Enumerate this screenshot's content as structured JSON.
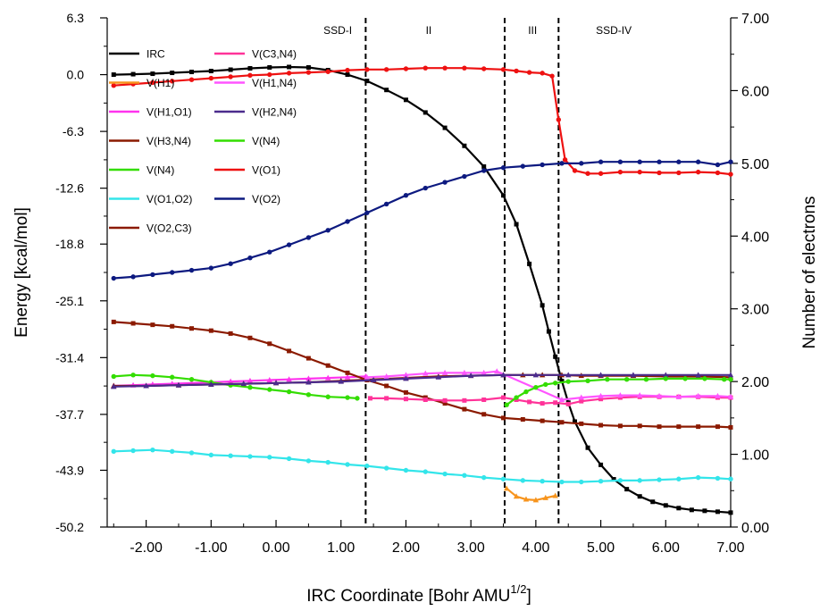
{
  "chart_data": {
    "type": "line",
    "title": "",
    "xlabel": "IRC Coordinate [Bohr AMU",
    "xlabel_sup": "1/2",
    "xlabel_end": "]",
    "ylabel_left": "Energy [kcal/mol]",
    "ylabel_right": "Number of electrons",
    "xlim": [
      -2.6,
      7.0
    ],
    "ylim_left": [
      -50.2,
      6.3
    ],
    "ylim_right": [
      0.0,
      7.0
    ],
    "xticks": [
      -2.0,
      -1.0,
      0.0,
      1.0,
      2.0,
      3.0,
      4.0,
      5.0,
      6.0,
      7.0
    ],
    "xtick_labels": [
      "-2.00",
      "-1.00",
      "0.00",
      "1.00",
      "2.00",
      "3.00",
      "4.00",
      "5.00",
      "6.00",
      "7.00"
    ],
    "yticks_left": [
      6.3,
      0.0,
      -6.3,
      -12.6,
      -18.8,
      -25.1,
      -31.4,
      -37.7,
      -43.9,
      -50.2
    ],
    "ytick_labels_left": [
      "6.3",
      "0.0",
      "-6.3",
      "-12.6",
      "-18.8",
      "-25.1",
      "-31.4",
      "-37.7",
      "-43.9",
      "-50.2"
    ],
    "yticks_right": [
      0.0,
      1.0,
      2.0,
      3.0,
      4.0,
      5.0,
      6.0,
      7.0
    ],
    "ytick_labels_right": [
      "0.00",
      "1.00",
      "2.00",
      "3.00",
      "4.00",
      "5.00",
      "6.00",
      "7.00"
    ],
    "grid": false,
    "legend_position": "top-left",
    "boundaries": [
      1.38,
      3.52,
      4.35
    ],
    "regions": [
      {
        "label": "SSD-I",
        "x": 0.95
      },
      {
        "label": "II",
        "x": 2.35
      },
      {
        "label": "III",
        "x": 3.95
      },
      {
        "label": "SSD-IV",
        "x": 5.2
      }
    ],
    "series": [
      {
        "name": "IRC",
        "axis": "left",
        "color": "#000000",
        "marker": "square",
        "x": [
          -2.5,
          -2.2,
          -1.9,
          -1.6,
          -1.3,
          -1.0,
          -0.7,
          -0.4,
          -0.1,
          0.2,
          0.5,
          0.8,
          1.1,
          1.4,
          1.7,
          2.0,
          2.3,
          2.6,
          2.9,
          3.2,
          3.5,
          3.7,
          3.9,
          4.1,
          4.2,
          4.3,
          4.4,
          4.5,
          4.6,
          4.8,
          5.0,
          5.2,
          5.4,
          5.6,
          5.8,
          6.0,
          6.2,
          6.4,
          6.6,
          6.8,
          7.0
        ],
        "y": [
          0.0,
          0.05,
          0.1,
          0.2,
          0.3,
          0.4,
          0.55,
          0.7,
          0.8,
          0.85,
          0.8,
          0.5,
          0.0,
          -0.7,
          -1.7,
          -2.8,
          -4.2,
          -5.9,
          -7.9,
          -10.2,
          -13.4,
          -16.6,
          -21.0,
          -25.6,
          -28.5,
          -31.3,
          -34.0,
          -36.4,
          -38.5,
          -41.4,
          -43.3,
          -44.9,
          -46.0,
          -46.8,
          -47.4,
          -47.8,
          -48.1,
          -48.3,
          -48.4,
          -48.5,
          -48.6
        ]
      },
      {
        "name": "V(H1)",
        "axis": "right",
        "color": "#f7941d",
        "marker": "triangle",
        "x": [
          3.55,
          3.7,
          3.85,
          4.0,
          4.15,
          4.3
        ],
        "y": [
          0.53,
          0.42,
          0.38,
          0.37,
          0.4,
          0.43
        ]
      },
      {
        "name": "V(H1,O1)",
        "axis": "right",
        "color": "#ff33ee",
        "marker": "triangle",
        "x": [
          -2.5,
          -2.2,
          -1.9,
          -1.6,
          -1.3,
          -1.0,
          -0.7,
          -0.4,
          -0.1,
          0.2,
          0.5,
          0.8,
          1.1,
          1.38
        ],
        "y": [
          1.94,
          1.95,
          1.96,
          1.97,
          1.98,
          1.99,
          2.0,
          2.01,
          2.02,
          2.03,
          2.04,
          2.05,
          2.06,
          2.07
        ]
      },
      {
        "name": "V(H3,N4)",
        "axis": "right",
        "color": "#8b1a00",
        "marker": "square",
        "x": [
          -2.5,
          -2.2,
          -1.9,
          -1.6,
          -1.3,
          -1.0,
          -0.7,
          -0.4,
          -0.1,
          0.2,
          0.5,
          0.8,
          1.1,
          1.4,
          1.7,
          2.0,
          2.3,
          2.6,
          2.9,
          3.2,
          3.5,
          3.8,
          4.1,
          4.4,
          4.7,
          5.0,
          5.3,
          5.6,
          5.9,
          6.2,
          6.5,
          6.8,
          7.0
        ],
        "y": [
          2.82,
          2.8,
          2.78,
          2.76,
          2.73,
          2.7,
          2.66,
          2.6,
          2.52,
          2.42,
          2.32,
          2.22,
          2.12,
          2.02,
          1.94,
          1.85,
          1.78,
          1.7,
          1.62,
          1.55,
          1.5,
          1.48,
          1.46,
          1.44,
          1.42,
          1.4,
          1.39,
          1.39,
          1.38,
          1.38,
          1.38,
          1.38,
          1.37
        ]
      },
      {
        "name": "V(N4)",
        "axis": "right",
        "color": "#33dd00",
        "marker": "circle",
        "x": [
          -2.5,
          -2.2,
          -1.9,
          -1.6,
          -1.3,
          -1.0,
          -0.7,
          -0.4,
          -0.1,
          0.2,
          0.5,
          0.8,
          1.1,
          1.25
        ],
        "y": [
          2.07,
          2.09,
          2.08,
          2.06,
          2.03,
          1.99,
          1.95,
          1.92,
          1.89,
          1.86,
          1.82,
          1.79,
          1.78,
          1.77
        ]
      },
      {
        "name": "V(O1,O2)",
        "axis": "right",
        "color": "#33e5ea",
        "marker": "circle",
        "x": [
          -2.5,
          -2.2,
          -1.9,
          -1.6,
          -1.3,
          -1.0,
          -0.7,
          -0.4,
          -0.1,
          0.2,
          0.5,
          0.8,
          1.1,
          1.4,
          1.7,
          2.0,
          2.3,
          2.6,
          2.9,
          3.2,
          3.5,
          3.8,
          4.1,
          4.4,
          4.7,
          5.0,
          5.3,
          5.6,
          5.9,
          6.2,
          6.5,
          6.8,
          7.0
        ],
        "y": [
          1.04,
          1.05,
          1.06,
          1.04,
          1.02,
          0.99,
          0.98,
          0.97,
          0.96,
          0.94,
          0.91,
          0.89,
          0.86,
          0.84,
          0.81,
          0.78,
          0.76,
          0.73,
          0.71,
          0.68,
          0.66,
          0.64,
          0.63,
          0.62,
          0.62,
          0.63,
          0.64,
          0.64,
          0.65,
          0.66,
          0.68,
          0.67,
          0.66
        ]
      },
      {
        "name": "V(O2,C3)",
        "axis": "right",
        "color": "#8b1a00",
        "marker": "triangle",
        "x": [
          -2.5,
          -2.0,
          -1.5,
          -1.0,
          -0.5,
          0.0,
          0.5,
          1.0,
          1.5,
          2.0,
          2.5,
          3.0,
          3.5,
          3.8,
          4.1,
          4.4,
          4.7,
          5.0,
          5.5,
          6.0,
          6.5,
          7.0
        ],
        "y": [
          1.94,
          1.94,
          1.95,
          1.96,
          1.97,
          1.98,
          1.99,
          2.01,
          2.03,
          2.05,
          2.07,
          2.08,
          2.09,
          2.09,
          2.09,
          2.09,
          2.08,
          2.08,
          2.08,
          2.07,
          2.07,
          2.06
        ]
      },
      {
        "name": "V(C3,N4)",
        "axis": "right",
        "color": "#ff3399",
        "marker": "square",
        "x": [
          1.45,
          1.7,
          2.0,
          2.3,
          2.6,
          2.9,
          3.2,
          3.5,
          3.7,
          3.9,
          4.1,
          4.3,
          4.5,
          4.7,
          5.0,
          5.3,
          5.6,
          5.9,
          6.2,
          6.5,
          6.8,
          7.0
        ],
        "y": [
          1.77,
          1.77,
          1.76,
          1.75,
          1.74,
          1.74,
          1.75,
          1.78,
          1.75,
          1.72,
          1.7,
          1.71,
          1.69,
          1.73,
          1.76,
          1.78,
          1.79,
          1.79,
          1.79,
          1.79,
          1.78,
          1.78
        ]
      },
      {
        "name": "V(H1,N4)",
        "axis": "right",
        "color": "#ff55ff",
        "marker": "triangle",
        "x": [
          1.4,
          1.7,
          2.0,
          2.3,
          2.6,
          2.9,
          3.2,
          3.4,
          4.4,
          4.7,
          5.0,
          5.3,
          5.6,
          5.9,
          6.2,
          6.5,
          6.8,
          7.0
        ],
        "y": [
          2.06,
          2.07,
          2.09,
          2.11,
          2.12,
          2.12,
          2.12,
          2.14,
          1.75,
          1.78,
          1.8,
          1.81,
          1.81,
          1.8,
          1.79,
          1.8,
          1.8,
          1.79
        ]
      },
      {
        "name": "V(H2,N4)",
        "axis": "right",
        "color": "#4b2b8c",
        "marker": "triangle",
        "x": [
          -2.5,
          -2.0,
          -1.5,
          -1.0,
          -0.5,
          0.0,
          0.5,
          1.0,
          1.5,
          2.0,
          2.5,
          3.0,
          3.5,
          4.0,
          4.5,
          5.0,
          5.5,
          6.0,
          6.5,
          7.0
        ],
        "y": [
          1.93,
          1.94,
          1.95,
          1.96,
          1.97,
          1.98,
          1.99,
          2.0,
          2.02,
          2.04,
          2.06,
          2.08,
          2.09,
          2.09,
          2.09,
          2.09,
          2.09,
          2.09,
          2.09,
          2.09
        ]
      },
      {
        "name": "V(N4)",
        "axis": "right",
        "color": "#33dd00",
        "marker": "circle",
        "x": [
          3.55,
          3.7,
          3.85,
          4.0,
          4.15,
          4.3,
          4.5,
          4.8,
          5.1,
          5.4,
          5.7,
          6.0,
          6.3,
          6.6,
          6.9,
          7.0
        ],
        "y": [
          1.68,
          1.78,
          1.86,
          1.92,
          1.96,
          1.98,
          2.0,
          2.01,
          2.03,
          2.03,
          2.03,
          2.04,
          2.04,
          2.04,
          2.03,
          2.03
        ]
      },
      {
        "name": "V(O1)",
        "axis": "right",
        "color": "#ee1111",
        "marker": "circle",
        "x": [
          -2.5,
          -2.2,
          -1.9,
          -1.6,
          -1.3,
          -1.0,
          -0.7,
          -0.4,
          -0.1,
          0.2,
          0.5,
          0.8,
          1.1,
          1.4,
          1.7,
          2.0,
          2.3,
          2.6,
          2.9,
          3.2,
          3.5,
          3.7,
          3.9,
          4.1,
          4.25,
          4.35,
          4.45,
          4.6,
          4.8,
          5.0,
          5.3,
          5.6,
          5.9,
          6.2,
          6.5,
          6.8,
          7.0
        ],
        "y": [
          6.07,
          6.09,
          6.11,
          6.13,
          6.15,
          6.17,
          6.19,
          6.21,
          6.22,
          6.24,
          6.25,
          6.26,
          6.28,
          6.29,
          6.29,
          6.3,
          6.31,
          6.31,
          6.31,
          6.3,
          6.29,
          6.27,
          6.25,
          6.24,
          6.2,
          5.6,
          5.05,
          4.9,
          4.86,
          4.86,
          4.88,
          4.88,
          4.87,
          4.87,
          4.88,
          4.87,
          4.85
        ]
      },
      {
        "name": "V(O2)",
        "axis": "right",
        "color": "#0d1a80",
        "marker": "circle",
        "x": [
          -2.5,
          -2.2,
          -1.9,
          -1.6,
          -1.3,
          -1.0,
          -0.7,
          -0.4,
          -0.1,
          0.2,
          0.5,
          0.8,
          1.1,
          1.4,
          1.7,
          2.0,
          2.3,
          2.6,
          2.9,
          3.2,
          3.5,
          3.8,
          4.1,
          4.4,
          4.7,
          5.0,
          5.3,
          5.6,
          5.9,
          6.2,
          6.5,
          6.8,
          7.0
        ],
        "y": [
          3.42,
          3.44,
          3.47,
          3.5,
          3.53,
          3.56,
          3.62,
          3.7,
          3.78,
          3.88,
          3.98,
          4.08,
          4.2,
          4.32,
          4.44,
          4.56,
          4.66,
          4.74,
          4.82,
          4.9,
          4.94,
          4.96,
          4.98,
          5.0,
          5.0,
          5.02,
          5.02,
          5.02,
          5.02,
          5.02,
          5.02,
          4.98,
          5.02
        ]
      }
    ]
  }
}
